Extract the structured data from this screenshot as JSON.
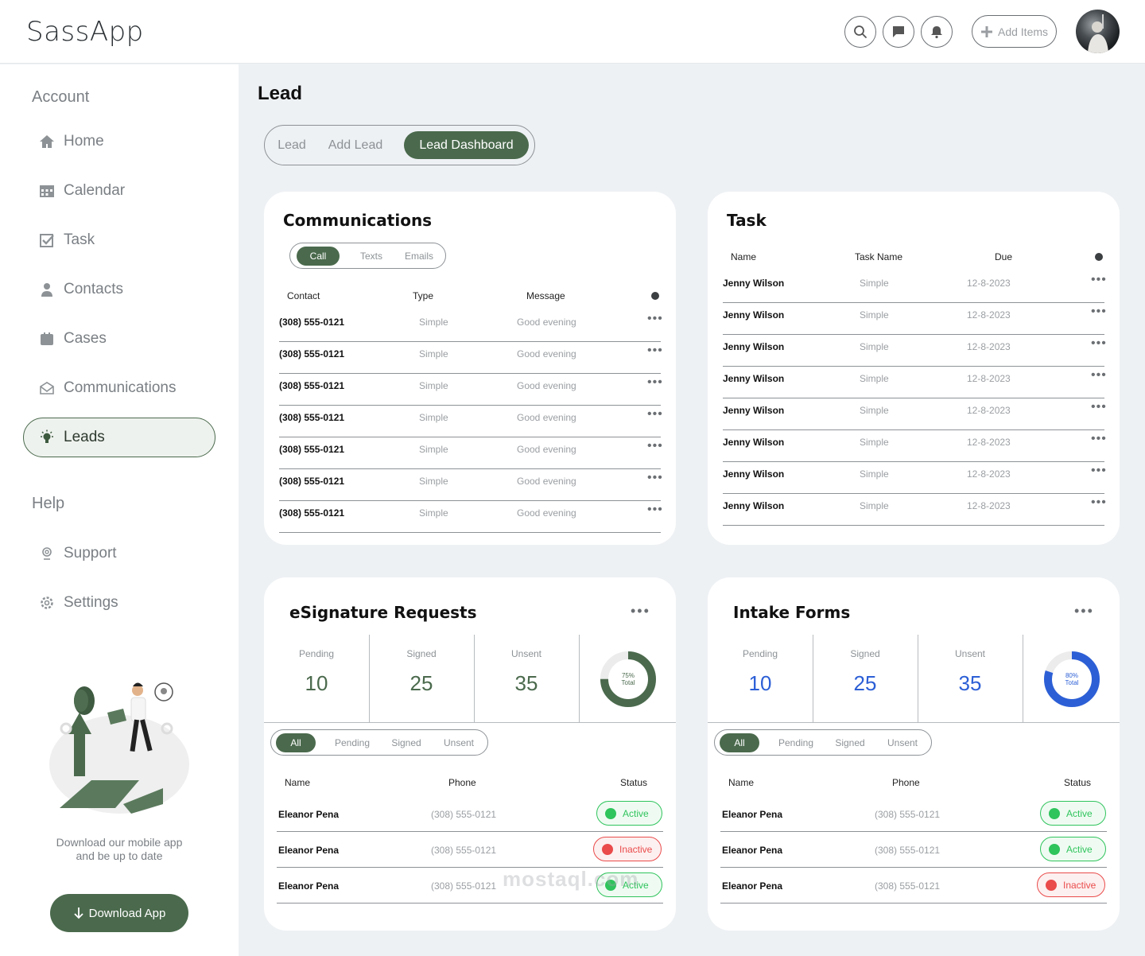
{
  "app": {
    "title": "SassApp"
  },
  "header": {
    "icons": [
      "search-icon",
      "chat-icon",
      "bell-icon"
    ],
    "add_items_label": "Add Items"
  },
  "sidebar": {
    "account_heading": "Account",
    "items": [
      {
        "label": "Home",
        "icon": "home-icon"
      },
      {
        "label": "Calendar",
        "icon": "calendar-icon"
      },
      {
        "label": "Task",
        "icon": "task-icon"
      },
      {
        "label": "Contacts",
        "icon": "contacts-icon"
      },
      {
        "label": "Cases",
        "icon": "cases-icon"
      },
      {
        "label": "Communications",
        "icon": "mail-icon"
      },
      {
        "label": "Leads",
        "icon": "lightbulb-icon",
        "active": true
      }
    ],
    "help_heading": "Help",
    "help_items": [
      {
        "label": "Support",
        "icon": "support-icon"
      },
      {
        "label": "Settings",
        "icon": "gear-icon"
      }
    ],
    "promo_text_line1": "Download our mobile app",
    "promo_text_line2": "and be up to date",
    "download_label": "Download App"
  },
  "main": {
    "title": "Lead",
    "tabs": [
      "Lead",
      "Add Lead",
      "Lead Dashboard"
    ],
    "active_tab": "Lead Dashboard"
  },
  "communications": {
    "title": "Communications",
    "segments": [
      "Call",
      "Texts",
      "Emails"
    ],
    "active_segment": "Call",
    "columns": [
      "Contact",
      "Type",
      "Message"
    ],
    "rows": [
      {
        "contact": "(308) 555-0121",
        "type": "Simple",
        "message": "Good evening"
      },
      {
        "contact": "(308) 555-0121",
        "type": "Simple",
        "message": "Good evening"
      },
      {
        "contact": "(308) 555-0121",
        "type": "Simple",
        "message": "Good evening"
      },
      {
        "contact": "(308) 555-0121",
        "type": "Simple",
        "message": "Good evening"
      },
      {
        "contact": "(308) 555-0121",
        "type": "Simple",
        "message": "Good evening"
      },
      {
        "contact": "(308) 555-0121",
        "type": "Simple",
        "message": "Good evening"
      },
      {
        "contact": "(308) 555-0121",
        "type": "Simple",
        "message": "Good evening"
      }
    ]
  },
  "task": {
    "title": "Task",
    "columns": [
      "Name",
      "Task Name",
      "Due"
    ],
    "rows": [
      {
        "name": "Jenny Wilson",
        "task": "Simple",
        "due": "12-8-2023"
      },
      {
        "name": "Jenny Wilson",
        "task": "Simple",
        "due": "12-8-2023"
      },
      {
        "name": "Jenny Wilson",
        "task": "Simple",
        "due": "12-8-2023"
      },
      {
        "name": "Jenny Wilson",
        "task": "Simple",
        "due": "12-8-2023"
      },
      {
        "name": "Jenny Wilson",
        "task": "Simple",
        "due": "12-8-2023"
      },
      {
        "name": "Jenny Wilson",
        "task": "Simple",
        "due": "12-8-2023"
      },
      {
        "name": "Jenny Wilson",
        "task": "Simple",
        "due": "12-8-2023"
      },
      {
        "name": "Jenny Wilson",
        "task": "Simple",
        "due": "12-8-2023"
      }
    ]
  },
  "esignature": {
    "title": "eSignature Requests",
    "stats": [
      {
        "label": "Pending",
        "value": "10"
      },
      {
        "label": "Signed",
        "value": "25"
      },
      {
        "label": "Unsent",
        "value": "35"
      }
    ],
    "donut": {
      "percent_label": "75%",
      "total_label": "Total",
      "fraction": 0.75,
      "color": "#4b6a4d"
    },
    "value_color": "#4b6a4d",
    "filters": [
      "All",
      "Pending",
      "Signed",
      "Unsent"
    ],
    "active_filter": "All",
    "columns": [
      "Name",
      "Phone",
      "Status"
    ],
    "rows": [
      {
        "name": "Eleanor Pena",
        "phone": "(308) 555-0121",
        "status": "Active"
      },
      {
        "name": "Eleanor Pena",
        "phone": "(308) 555-0121",
        "status": "Inactive"
      },
      {
        "name": "Eleanor Pena",
        "phone": "(308) 555-0121",
        "status": "Active"
      }
    ]
  },
  "intake": {
    "title": "Intake Forms",
    "stats": [
      {
        "label": "Pending",
        "value": "10"
      },
      {
        "label": "Signed",
        "value": "25"
      },
      {
        "label": "Unsent",
        "value": "35"
      }
    ],
    "donut": {
      "percent_label": "80%",
      "total_label": "Total",
      "fraction": 0.8,
      "color": "#2c5fd6"
    },
    "value_color": "#2c5fd6",
    "filters": [
      "All",
      "Pending",
      "Signed",
      "Unsent"
    ],
    "active_filter": "All",
    "columns": [
      "Name",
      "Phone",
      "Status"
    ],
    "rows": [
      {
        "name": "Eleanor Pena",
        "phone": "(308) 555-0121",
        "status": "Active"
      },
      {
        "name": "Eleanor Pena",
        "phone": "(308) 555-0121",
        "status": "Active"
      },
      {
        "name": "Eleanor Pena",
        "phone": "(308) 555-0121",
        "status": "Inactive"
      }
    ]
  },
  "watermark": "mostaql.com"
}
